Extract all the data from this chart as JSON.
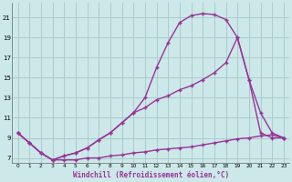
{
  "xlabel": "Windchill (Refroidissement éolien,°C)",
  "bg_color": "#cce8e8",
  "grid_color": "#aacccc",
  "line_color": "#993399",
  "line1_x": [
    0,
    1,
    2,
    3,
    4,
    5,
    6,
    7,
    8,
    9,
    10,
    11,
    12,
    13,
    14,
    15,
    16,
    17,
    18,
    19,
    20,
    21,
    22,
    23
  ],
  "line1_y": [
    9.5,
    8.5,
    7.5,
    6.8,
    7.2,
    7.5,
    8.0,
    8.8,
    9.5,
    10.5,
    11.5,
    13.0,
    16.0,
    18.5,
    20.5,
    21.2,
    21.4,
    21.3,
    20.8,
    19.0,
    14.8,
    9.5,
    9.0,
    9.0
  ],
  "line2_x": [
    0,
    1,
    2,
    3,
    4,
    5,
    6,
    7,
    8,
    9,
    10,
    11,
    12,
    13,
    14,
    15,
    16,
    17,
    18,
    19,
    20,
    21,
    22,
    23
  ],
  "line2_y": [
    9.5,
    8.5,
    7.5,
    6.8,
    7.2,
    7.5,
    8.0,
    8.8,
    9.5,
    10.5,
    11.5,
    12.0,
    12.8,
    13.2,
    13.8,
    14.2,
    14.8,
    15.5,
    16.5,
    19.0,
    14.8,
    11.5,
    9.5,
    9.0
  ],
  "line3_x": [
    0,
    1,
    2,
    3,
    4,
    5,
    6,
    7,
    8,
    9,
    10,
    11,
    12,
    13,
    14,
    15,
    16,
    17,
    18,
    19,
    20,
    21,
    22,
    23
  ],
  "line3_y": [
    9.5,
    8.5,
    7.5,
    6.8,
    6.8,
    6.8,
    7.0,
    7.0,
    7.2,
    7.3,
    7.5,
    7.6,
    7.8,
    7.9,
    8.0,
    8.1,
    8.3,
    8.5,
    8.7,
    8.9,
    9.0,
    9.2,
    9.3,
    9.0
  ],
  "yticks": [
    7,
    9,
    11,
    13,
    15,
    17,
    19,
    21
  ],
  "xtick_labels": [
    "0",
    "1",
    "2",
    "3",
    "4",
    "5",
    "6",
    "7",
    "8",
    "9",
    "10",
    "11",
    "12",
    "13",
    "14",
    "15",
    "16",
    "17",
    "18",
    "19",
    "20",
    "21",
    "22",
    "23"
  ],
  "xlim": [
    -0.5,
    23.5
  ],
  "ylim": [
    6.5,
    22.5
  ]
}
